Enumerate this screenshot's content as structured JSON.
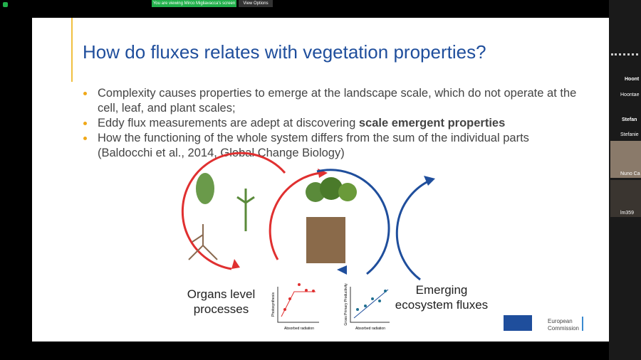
{
  "share_bar": {
    "notice": "You are viewing Mirco Migliavacca's screen",
    "options": "View Options"
  },
  "slide": {
    "title": "How do fluxes relates with vegetation properties?",
    "bullets": [
      {
        "text": "Complexity causes properties to emerge at the landscape scale, which do not operate at the cell, leaf, and plant scales;"
      },
      {
        "text": "Eddy flux measurements are adept at discovering ",
        "bold": "scale emergent properties"
      },
      {
        "text": "How the functioning of the whole system differs from the sum of the individual parts (Baldocchi et al., 2014, Global Change Biology)"
      }
    ],
    "left_label": "Organs level processes",
    "right_label": "Emerging ecosystem fluxes",
    "plot1": {
      "y_label": "Photosynthesis",
      "x_label": "Absorbed radiation"
    },
    "plot2": {
      "y_label": "Gross Primary Productivity",
      "x_label": "Absorbed radiation"
    },
    "logo": "European Commission"
  },
  "sidebar": {
    "participants": [
      {
        "header": "Hoont",
        "name": "Hoontae"
      },
      {
        "header": "Stefan",
        "name": "Stefanie"
      },
      {
        "name": "Nuno Ca"
      },
      {
        "name": "lm359"
      }
    ]
  }
}
